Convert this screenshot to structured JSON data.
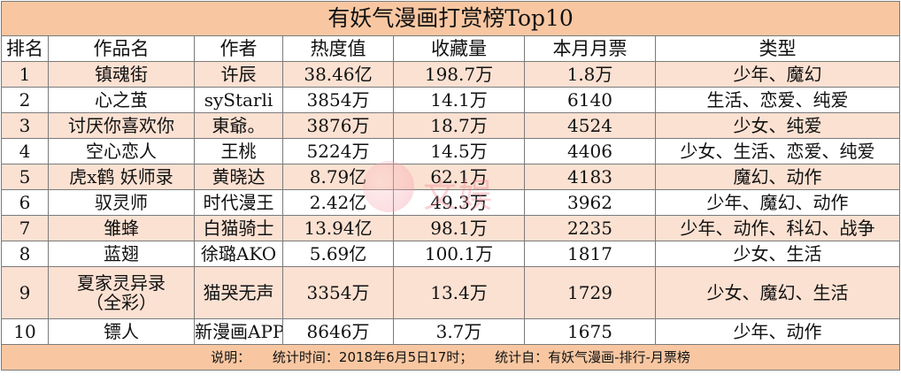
{
  "title": "有妖气漫画打赏榜Top10",
  "headers": [
    "排名",
    "作品名",
    "作者",
    "热度值",
    "收藏量",
    "本月月票",
    "类型"
  ],
  "rows": [
    [
      "1",
      "镇魂街",
      "许辰",
      "38.46亿",
      "198.7万",
      "1.8万",
      "少年、魔幻"
    ],
    [
      "2",
      "心之茧",
      "syStarli",
      "3854万",
      "14.1万",
      "6140",
      "生活、恋爱、纯爱"
    ],
    [
      "3",
      "讨厌你喜欢你",
      "東爺。",
      "3876万",
      "18.7万",
      "4524",
      "少女、纯爱"
    ],
    [
      "4",
      "空心恋人",
      "王桃",
      "5224万",
      "14.5万",
      "4406",
      "少女、生活、恋爱、纯爱"
    ],
    [
      "5",
      "虎x鹤 妖师录",
      "黄晓达",
      "8.79亿",
      "62.1万",
      "4183",
      "魔幻、动作"
    ],
    [
      "6",
      "驭灵师",
      "时代漫王",
      "2.42亿",
      "49.3万",
      "3962",
      "少年、魔幻、动作"
    ],
    [
      "7",
      "雏蜂",
      "白猫骑士",
      "13.94亿",
      "98.1万",
      "2235",
      "少年、动作、科幻、战争"
    ],
    [
      "8",
      "蓝翅",
      "徐璐AKO",
      "5.69亿",
      "100.1万",
      "1817",
      "少女、生活"
    ],
    [
      "9",
      "夏家灵异录",
      "猫哭无声",
      "3354万",
      "13.4万",
      "1729",
      "少女、魔幻、生活"
    ],
    [
      "10",
      "镖人",
      "新漫画APP",
      "8646万",
      "3.7万",
      "1675",
      "少年、动作"
    ]
  ],
  "row9_subtitle": "（全彩）",
  "note": {
    "label": "说明：",
    "time": "统计时间：2018年6月5日17时；",
    "source": "统计自：有妖气漫画-排行-月票榜"
  },
  "watermark": {
    "text": "文娱",
    "icon": "watermark-logo-icon"
  },
  "colors": {
    "title_bg": "#f8c7a2",
    "odd_row_bg": "#fbe1d2",
    "even_row_bg": "#ffffff",
    "border": "#7a7a7a"
  }
}
